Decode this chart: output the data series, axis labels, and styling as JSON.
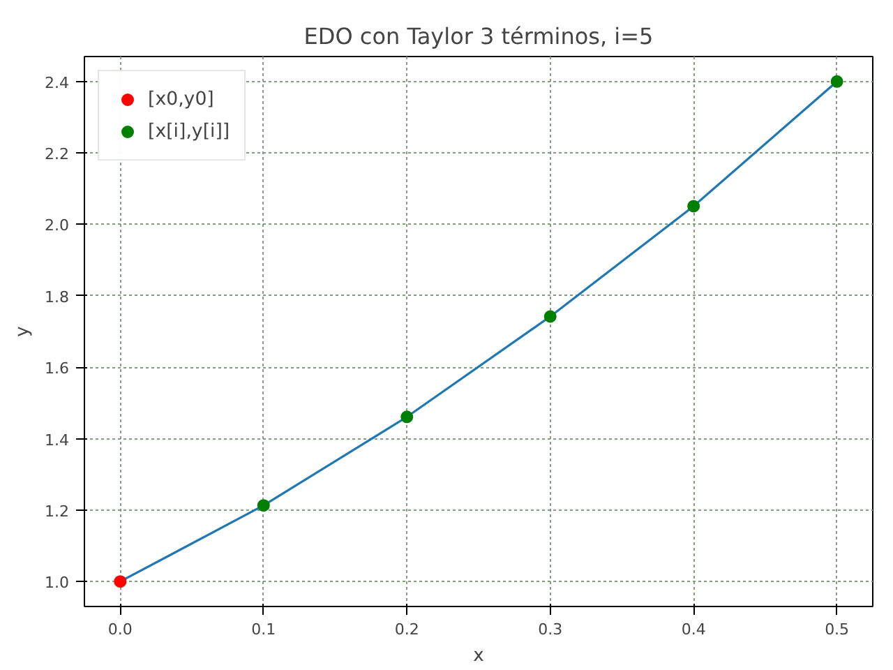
{
  "chart_data": {
    "type": "line",
    "title": "EDO con Taylor 3 términos, i=5",
    "xlabel": "x",
    "ylabel": "y",
    "x": [
      0,
      0.1,
      0.2,
      0.3,
      0.4,
      0.5
    ],
    "series": [
      {
        "color": "#1f77b4",
        "values": [
          1.0,
          1.213,
          1.461,
          1.742,
          2.051,
          2.4
        ],
        "marker": "none"
      },
      {
        "type": "scatter",
        "name": "[x0,y0]",
        "color": "#ff0000",
        "x": [
          0
        ],
        "values": [
          1.0
        ],
        "marker": "circle"
      },
      {
        "type": "scatter",
        "name": "[x[i],y[i]]",
        "color": "#008000",
        "x": [
          0.1,
          0.2,
          0.3,
          0.4,
          0.5
        ],
        "values": [
          1.213,
          1.461,
          1.742,
          2.051,
          2.4
        ],
        "marker": "circle"
      }
    ],
    "xlim": [
      -0.025,
      0.525
    ],
    "ylim": [
      0.93,
      2.47
    ],
    "xticks": [
      {
        "value": 0,
        "label": "0.0"
      },
      0.1,
      0.2,
      0.3,
      0.4,
      0.5
    ],
    "yticks": [
      {
        "value": 1,
        "label": "1.0"
      },
      1.2,
      1.4,
      1.6,
      1.8,
      {
        "value": 2,
        "label": "2.0"
      },
      2.2,
      2.4
    ],
    "grid": true,
    "legend": "top left",
    "line_style": "solid"
  }
}
